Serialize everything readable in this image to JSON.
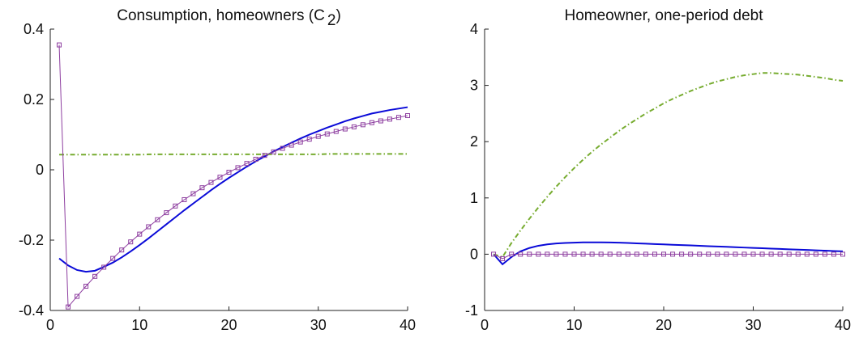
{
  "chart_data": [
    {
      "type": "line",
      "title": {
        "text": "Consumption, homeowners  (C",
        "subscript": "2",
        "close": ")"
      },
      "x": [
        1,
        2,
        3,
        4,
        5,
        6,
        7,
        8,
        9,
        10,
        11,
        12,
        13,
        14,
        15,
        16,
        17,
        18,
        19,
        20,
        21,
        22,
        23,
        24,
        25,
        26,
        27,
        28,
        29,
        30,
        31,
        32,
        33,
        34,
        35,
        36,
        37,
        38,
        39,
        40
      ],
      "xlim": [
        0,
        40
      ],
      "xticks": [
        0,
        10,
        20,
        30,
        40
      ],
      "ylim": [
        -0.4,
        0.4
      ],
      "yticks": [
        -0.4,
        -0.2,
        0,
        0.2,
        0.4
      ],
      "series": [
        {
          "color": "#0a0ad8",
          "dash": "solid",
          "marker": "none",
          "values": [
            -0.252,
            -0.272,
            -0.285,
            -0.29,
            -0.287,
            -0.276,
            -0.264,
            -0.249,
            -0.232,
            -0.214,
            -0.195,
            -0.175,
            -0.155,
            -0.135,
            -0.115,
            -0.096,
            -0.077,
            -0.058,
            -0.04,
            -0.023,
            -0.007,
            0.009,
            0.024,
            0.038,
            0.052,
            0.065,
            0.077,
            0.089,
            0.1,
            0.11,
            0.12,
            0.129,
            0.138,
            0.146,
            0.153,
            0.16,
            0.165,
            0.17,
            0.174,
            0.178
          ]
        },
        {
          "color": "#77ac30",
          "dash": "dashdot",
          "marker": "none",
          "values": [
            0.043,
            0.043,
            0.043,
            0.043,
            0.043,
            0.043,
            0.043,
            0.043,
            0.043,
            0.043,
            0.044,
            0.044,
            0.044,
            0.044,
            0.044,
            0.044,
            0.044,
            0.044,
            0.044,
            0.044,
            0.044,
            0.044,
            0.044,
            0.044,
            0.044,
            0.044,
            0.044,
            0.044,
            0.044,
            0.044,
            0.045,
            0.045,
            0.045,
            0.045,
            0.045,
            0.045,
            0.045,
            0.045,
            0.045,
            0.045
          ]
        },
        {
          "color": "#8e3fa0",
          "dash": "solid",
          "marker": "square",
          "values": [
            0.355,
            -0.39,
            -0.36,
            -0.331,
            -0.303,
            -0.277,
            -0.252,
            -0.228,
            -0.205,
            -0.183,
            -0.162,
            -0.142,
            -0.122,
            -0.103,
            -0.085,
            -0.068,
            -0.051,
            -0.036,
            -0.021,
            -0.007,
            0.006,
            0.018,
            0.03,
            0.041,
            0.051,
            0.061,
            0.07,
            0.079,
            0.087,
            0.095,
            0.102,
            0.109,
            0.116,
            0.122,
            0.128,
            0.134,
            0.139,
            0.144,
            0.149,
            0.154
          ]
        }
      ]
    },
    {
      "type": "line",
      "title": {
        "text": "Homeowner, one-period debt"
      },
      "x": [
        1,
        2,
        3,
        4,
        5,
        6,
        7,
        8,
        9,
        10,
        11,
        12,
        13,
        14,
        15,
        16,
        17,
        18,
        19,
        20,
        21,
        22,
        23,
        24,
        25,
        26,
        27,
        28,
        29,
        30,
        31,
        32,
        33,
        34,
        35,
        36,
        37,
        38,
        39,
        40
      ],
      "xlim": [
        0,
        40
      ],
      "xticks": [
        0,
        10,
        20,
        30,
        40
      ],
      "ylim": [
        -1,
        4
      ],
      "yticks": [
        -1,
        0,
        1,
        2,
        3,
        4
      ],
      "series": [
        {
          "color": "#0a0ad8",
          "dash": "solid",
          "marker": "none",
          "values": [
            0,
            -0.18,
            -0.05,
            0.05,
            0.11,
            0.15,
            0.175,
            0.19,
            0.2,
            0.205,
            0.21,
            0.21,
            0.21,
            0.208,
            0.205,
            0.199,
            0.193,
            0.187,
            0.18,
            0.174,
            0.168,
            0.162,
            0.156,
            0.149,
            0.143,
            0.137,
            0.131,
            0.125,
            0.118,
            0.112,
            0.106,
            0.1,
            0.094,
            0.087,
            0.081,
            0.075,
            0.069,
            0.063,
            0.056,
            0.05
          ]
        },
        {
          "color": "#77ac30",
          "dash": "dashdot",
          "marker": "none",
          "values": [
            0,
            -0.05,
            0.2,
            0.42,
            0.63,
            0.83,
            1.02,
            1.2,
            1.37,
            1.53,
            1.68,
            1.82,
            1.95,
            2.07,
            2.19,
            2.3,
            2.4,
            2.5,
            2.59,
            2.68,
            2.76,
            2.83,
            2.9,
            2.96,
            3.02,
            3.07,
            3.11,
            3.15,
            3.18,
            3.2,
            3.22,
            3.22,
            3.21,
            3.2,
            3.19,
            3.17,
            3.15,
            3.13,
            3.1,
            3.08
          ]
        },
        {
          "color": "#8e3fa0",
          "dash": "solid",
          "marker": "square",
          "values": [
            0,
            -0.08,
            0,
            0,
            0,
            0,
            0,
            0,
            0,
            0,
            0,
            0,
            0,
            0,
            0,
            0,
            0,
            0,
            0,
            0,
            0,
            0,
            0,
            0,
            0,
            0,
            0,
            0,
            0,
            0,
            0,
            0,
            0,
            0,
            0,
            0,
            0,
            0,
            0,
            0
          ]
        }
      ]
    }
  ]
}
